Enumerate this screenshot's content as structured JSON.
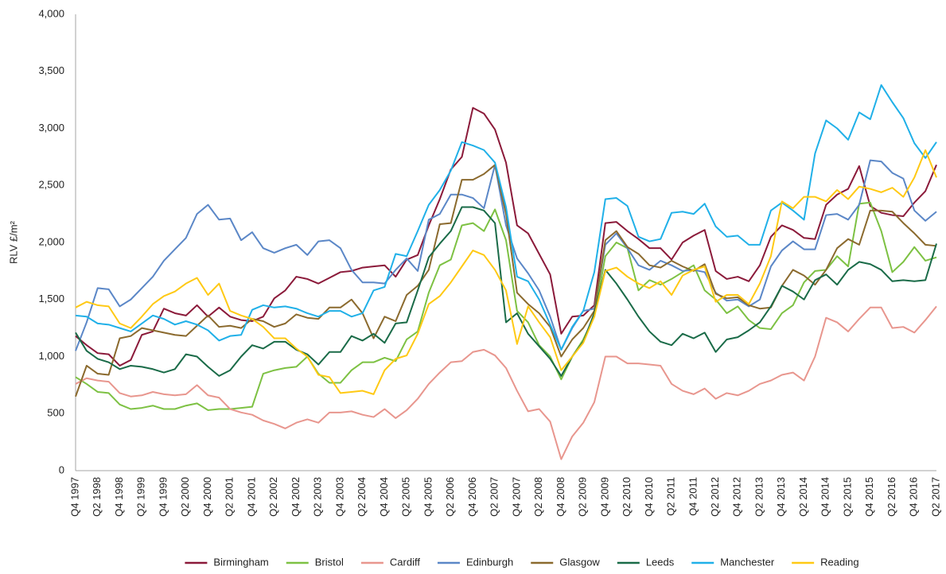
{
  "chart_data": {
    "type": "line",
    "y_label": "RLV £/m²",
    "categories": [
      "Q4 1997",
      null,
      "Q2 1998",
      null,
      "Q4 1998",
      null,
      "Q2 1999",
      null,
      "Q4 1999",
      null,
      "Q2 2000",
      null,
      "Q4 2000",
      null,
      "Q2 2001",
      null,
      "Q4 2001",
      null,
      "Q2 2002",
      null,
      "Q4 2002",
      null,
      "Q2 2003",
      null,
      "Q4 2003",
      null,
      "Q2 2004",
      null,
      "Q4 2004",
      null,
      "Q2 2005",
      null,
      "Q4 2005",
      null,
      "Q2 2006",
      null,
      "Q4 2006",
      null,
      "Q2 2007",
      null,
      "Q4 2007",
      null,
      "Q2 2008",
      null,
      "Q4 2008",
      null,
      "Q2 2009",
      null,
      "Q4 2009",
      null,
      "Q2 2010",
      null,
      "Q4 2010",
      null,
      "Q2 2011",
      null,
      "Q4 2011",
      null,
      "Q2 2012",
      null,
      "Q4 2012",
      null,
      "Q2 2013",
      null,
      "Q4 2013",
      null,
      "Q2 2014",
      null,
      "Q4 2014",
      null,
      "Q2 2015",
      null,
      "Q4 2015",
      null,
      "Q2 2016",
      null,
      "Q4 2016",
      null,
      "Q2 2017"
    ],
    "ylim": [
      0,
      4000
    ],
    "yticks": [
      0,
      500,
      {
        "value": 1000,
        "label": "1,000"
      },
      {
        "value": 1500,
        "label": "1,500"
      },
      {
        "value": 2000,
        "label": "2,000"
      },
      {
        "value": 2500,
        "label": "2,500"
      },
      {
        "value": 3000,
        "label": "3,000"
      },
      {
        "value": 3500,
        "label": "3,500"
      },
      {
        "value": 4000,
        "label": "4,000"
      }
    ],
    "grid": false,
    "legend": "bottom",
    "series": [
      {
        "name": "Birmingham",
        "color": "#8b1a3a",
        "values": [
          1180,
          1100,
          1030,
          1020,
          920,
          970,
          1190,
          1220,
          1420,
          1380,
          1360,
          1450,
          1350,
          1430,
          1350,
          1320,
          1310,
          1350,
          1510,
          1580,
          1700,
          1680,
          1640,
          1690,
          1740,
          1750,
          1780,
          1790,
          1800,
          1700,
          1850,
          1890,
          2150,
          2380,
          2640,
          2750,
          3180,
          3130,
          2990,
          2700,
          2150,
          2080,
          1900,
          1720,
          1200,
          1350,
          1360,
          1450,
          2170,
          2180,
          2100,
          2030,
          1950,
          1950,
          1850,
          2000,
          2060,
          2110,
          1750,
          1680,
          1700,
          1660,
          1800,
          2050,
          2150,
          2110,
          2040,
          2030,
          2330,
          2420,
          2470,
          2670,
          2320,
          2260,
          2240,
          2230,
          2350,
          2450,
          2680
        ]
      },
      {
        "name": "Bristol",
        "color": "#7dc143",
        "values": [
          820,
          760,
          690,
          680,
          580,
          540,
          550,
          570,
          540,
          540,
          570,
          590,
          530,
          540,
          540,
          550,
          560,
          850,
          880,
          900,
          910,
          1000,
          850,
          770,
          770,
          880,
          950,
          950,
          990,
          960,
          1150,
          1220,
          1560,
          1800,
          1850,
          2150,
          2170,
          2100,
          2290,
          2020,
          1400,
          1300,
          1100,
          1000,
          800,
          1000,
          1150,
          1350,
          1880,
          2000,
          1950,
          1580,
          1670,
          1630,
          1680,
          1740,
          1800,
          1580,
          1500,
          1380,
          1440,
          1320,
          1250,
          1240,
          1380,
          1450,
          1650,
          1750,
          1760,
          1880,
          1790,
          2340,
          2350,
          2100,
          1740,
          1830,
          1960,
          1840,
          1870
        ]
      },
      {
        "name": "Cardiff",
        "color": "#e8968e",
        "values": [
          760,
          810,
          790,
          780,
          680,
          650,
          660,
          690,
          670,
          660,
          670,
          750,
          660,
          640,
          540,
          510,
          490,
          440,
          410,
          370,
          420,
          450,
          420,
          510,
          510,
          520,
          490,
          470,
          540,
          460,
          530,
          630,
          760,
          860,
          950,
          960,
          1040,
          1060,
          1010,
          900,
          700,
          520,
          540,
          430,
          100,
          300,
          420,
          600,
          1000,
          1000,
          940,
          940,
          930,
          920,
          760,
          700,
          670,
          720,
          630,
          680,
          660,
          700,
          760,
          790,
          840,
          860,
          790,
          1000,
          1340,
          1300,
          1220,
          1330,
          1430,
          1430,
          1250,
          1260,
          1210,
          1320,
          1440
        ]
      },
      {
        "name": "Edinburgh",
        "color": "#5b87c7",
        "values": [
          1050,
          1300,
          1600,
          1590,
          1440,
          1500,
          1600,
          1700,
          1840,
          1940,
          2040,
          2250,
          2330,
          2200,
          2210,
          2020,
          2090,
          1950,
          1910,
          1950,
          1980,
          1890,
          2010,
          2020,
          1950,
          1760,
          1650,
          1650,
          1640,
          1760,
          1860,
          1750,
          2200,
          2250,
          2420,
          2420,
          2390,
          2300,
          2680,
          2150,
          1860,
          1730,
          1580,
          1350,
          1060,
          1250,
          1400,
          1420,
          1980,
          2080,
          1950,
          1800,
          1760,
          1840,
          1800,
          1750,
          1760,
          1740,
          1560,
          1490,
          1500,
          1440,
          1500,
          1790,
          1930,
          2010,
          1940,
          1940,
          2240,
          2250,
          2200,
          2330,
          2720,
          2710,
          2610,
          2560,
          2280,
          2190,
          2270
        ]
      },
      {
        "name": "Glasgow",
        "color": "#8b6a2e",
        "values": [
          650,
          920,
          850,
          840,
          1160,
          1180,
          1250,
          1230,
          1210,
          1190,
          1180,
          1270,
          1360,
          1260,
          1270,
          1250,
          1330,
          1310,
          1260,
          1290,
          1370,
          1340,
          1330,
          1430,
          1430,
          1500,
          1380,
          1160,
          1350,
          1310,
          1540,
          1620,
          1760,
          2160,
          2170,
          2550,
          2550,
          2600,
          2680,
          2250,
          1560,
          1460,
          1380,
          1260,
          1000,
          1150,
          1250,
          1400,
          2020,
          2100,
          1960,
          1900,
          1800,
          1780,
          1840,
          1790,
          1750,
          1810,
          1550,
          1510,
          1520,
          1450,
          1420,
          1430,
          1620,
          1760,
          1710,
          1630,
          1760,
          1950,
          2030,
          1980,
          2280,
          2280,
          2270,
          2170,
          2080,
          1980,
          1970
        ]
      },
      {
        "name": "Leeds",
        "color": "#1a6b48",
        "values": [
          1210,
          1050,
          980,
          950,
          890,
          920,
          910,
          890,
          860,
          890,
          1020,
          1000,
          910,
          830,
          880,
          1000,
          1100,
          1070,
          1130,
          1130,
          1060,
          1020,
          930,
          1040,
          1040,
          1180,
          1140,
          1200,
          1120,
          1290,
          1300,
          1580,
          1870,
          1990,
          2100,
          2310,
          2310,
          2280,
          2170,
          1300,
          1380,
          1200,
          1090,
          980,
          830,
          1000,
          1130,
          1380,
          1760,
          1640,
          1500,
          1350,
          1220,
          1130,
          1100,
          1200,
          1160,
          1210,
          1040,
          1150,
          1170,
          1230,
          1300,
          1440,
          1620,
          1570,
          1500,
          1670,
          1720,
          1630,
          1760,
          1830,
          1810,
          1760,
          1660,
          1670,
          1660,
          1670,
          1990
        ]
      },
      {
        "name": "Manchester",
        "color": "#20b0e8",
        "values": [
          1360,
          1350,
          1290,
          1280,
          1250,
          1220,
          1290,
          1360,
          1330,
          1280,
          1310,
          1280,
          1230,
          1140,
          1180,
          1190,
          1410,
          1450,
          1430,
          1440,
          1420,
          1380,
          1350,
          1400,
          1400,
          1350,
          1380,
          1580,
          1610,
          1900,
          1880,
          2100,
          2330,
          2460,
          2630,
          2880,
          2850,
          2810,
          2700,
          2310,
          1700,
          1660,
          1500,
          1280,
          1060,
          1260,
          1400,
          1740,
          2380,
          2390,
          2320,
          2050,
          2010,
          2030,
          2260,
          2270,
          2250,
          2340,
          2140,
          2050,
          2060,
          1980,
          1980,
          2280,
          2350,
          2280,
          2200,
          2780,
          3070,
          3000,
          2900,
          3140,
          3080,
          3380,
          3230,
          3090,
          2870,
          2740,
          2880
        ]
      },
      {
        "name": "Reading",
        "color": "#ffc914",
        "values": [
          1430,
          1480,
          1450,
          1440,
          1290,
          1250,
          1350,
          1460,
          1530,
          1570,
          1640,
          1690,
          1540,
          1640,
          1400,
          1360,
          1330,
          1260,
          1160,
          1160,
          1070,
          1000,
          840,
          820,
          680,
          690,
          700,
          670,
          880,
          980,
          1010,
          1200,
          1460,
          1530,
          1650,
          1790,
          1930,
          1890,
          1760,
          1580,
          1110,
          1440,
          1300,
          1170,
          880,
          1000,
          1120,
          1350,
          1750,
          1780,
          1700,
          1640,
          1600,
          1660,
          1540,
          1710,
          1760,
          1790,
          1480,
          1540,
          1540,
          1460,
          1640,
          1880,
          2360,
          2300,
          2400,
          2400,
          2360,
          2460,
          2380,
          2490,
          2470,
          2440,
          2480,
          2400,
          2570,
          2810,
          2570
        ]
      }
    ]
  }
}
